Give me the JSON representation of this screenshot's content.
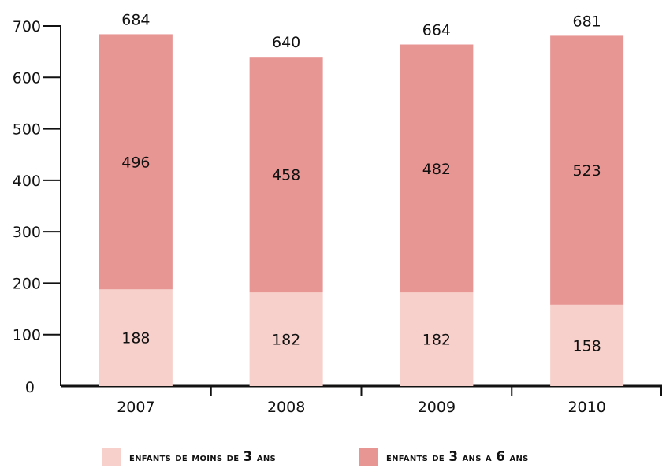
{
  "chart_data": {
    "type": "bar",
    "stacked": true,
    "categories": [
      "2007",
      "2008",
      "2009",
      "2010"
    ],
    "series": [
      {
        "name": "ENFANTS DE MOINS DE 3 ANS",
        "values": [
          188,
          182,
          182,
          158
        ],
        "color": "#f7d0cb"
      },
      {
        "name": "ENFANTS DE 3 ANS A 6 ANS",
        "values": [
          496,
          458,
          482,
          523
        ],
        "color": "#e89694"
      }
    ],
    "totals": [
      684,
      640,
      664,
      681
    ],
    "ylim": [
      0,
      700
    ],
    "yticks": [
      0,
      100,
      200,
      300,
      400,
      500,
      600,
      700
    ],
    "title": "",
    "xlabel": "",
    "ylabel": "",
    "grid": false,
    "legend_position": "bottom"
  },
  "legend": {
    "item1": {
      "pre": "enfants de moins de ",
      "num": "3",
      "post": " ans"
    },
    "item2": {
      "pre": "enfants de ",
      "num": "3",
      "mid": " ans a ",
      "num2": "6",
      "post": " ans"
    }
  }
}
